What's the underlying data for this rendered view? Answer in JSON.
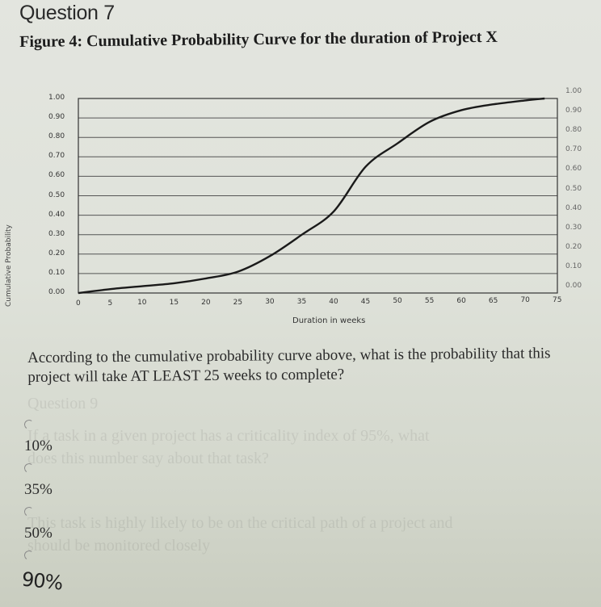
{
  "question": {
    "number_label": "Question 7",
    "figure_title": "Figure 4: Cumulative Probability Curve for the duration of Project X",
    "prompt": "According to the cumulative probability curve above, what is the probability that this project will take AT LEAST 25 weeks to complete?"
  },
  "options": [
    {
      "label": "10%",
      "selected": false
    },
    {
      "label": "35%",
      "selected": false
    },
    {
      "label": "50%",
      "selected": false
    },
    {
      "label": "",
      "selected": false
    }
  ],
  "handwritten_note": "90%",
  "ghost_text": {
    "heading": "Question 9",
    "line1": "If a task in a given project has a criticality index of 95%, what",
    "line2": "does this number say about that task?",
    "line3": "This task is highly likely to be on the critical path of a project and",
    "line4": "should be monitored closely"
  },
  "chart_data": {
    "type": "line",
    "title": "Figure 4: Cumulative Probability Curve for the duration of Project X",
    "xlabel": "Duration in weeks",
    "ylabel": "Cumulative Probability",
    "xlim": [
      0,
      75
    ],
    "ylim": [
      0,
      1.0
    ],
    "x_ticks": [
      "0",
      "5",
      "10",
      "15",
      "20",
      "25",
      "30",
      "35",
      "40",
      "45",
      "50",
      "55",
      "60",
      "65",
      "70",
      "75"
    ],
    "y_ticks": [
      "0.00",
      "0.10",
      "0.20",
      "0.30",
      "0.40",
      "0.50",
      "0.60",
      "0.70",
      "0.80",
      "0.90",
      "1.00"
    ],
    "y_ticks_right": [
      "0.00",
      "0.10",
      "0.20",
      "0.30",
      "0.40",
      "0.50",
      "0.60",
      "0.70",
      "0.80",
      "0.90",
      "1.00"
    ],
    "grid": true,
    "legend": null,
    "series": [
      {
        "name": "Cumulative probability",
        "x": [
          0,
          5,
          10,
          15,
          20,
          25,
          30,
          35,
          40,
          45,
          50,
          55,
          60,
          65,
          70,
          73
        ],
        "y": [
          0.0,
          0.02,
          0.035,
          0.05,
          0.075,
          0.11,
          0.19,
          0.3,
          0.42,
          0.65,
          0.77,
          0.88,
          0.94,
          0.97,
          0.99,
          1.0
        ]
      }
    ]
  },
  "colors": {
    "paper": "#dfe2da",
    "curve": "#1a1a1a",
    "grid": "#555555"
  }
}
